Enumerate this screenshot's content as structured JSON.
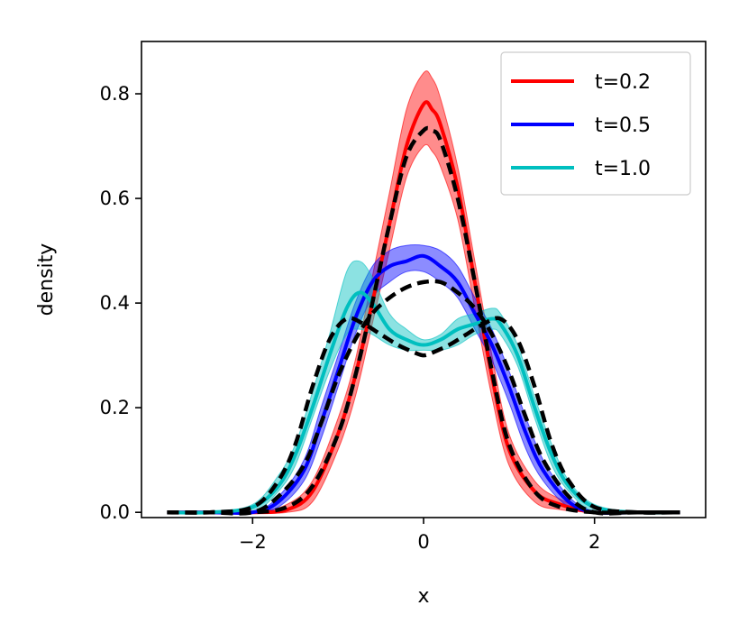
{
  "chart_data": {
    "type": "line",
    "title": "",
    "xlabel": "x",
    "ylabel": "density",
    "xlim": [
      -3.3,
      3.3
    ],
    "ylim": [
      -0.01,
      0.9
    ],
    "xticks": [
      -2,
      0,
      2
    ],
    "xtick_labels": [
      "−2",
      "0",
      "2"
    ],
    "yticks": [
      0.0,
      0.2,
      0.4,
      0.6,
      0.8
    ],
    "ytick_labels": [
      "0.0",
      "0.2",
      "0.4",
      "0.6",
      "0.8"
    ],
    "grid": false,
    "legend": {
      "placement": "top-right",
      "entries": [
        "t=0.2",
        "t=0.5",
        "t=1.0"
      ]
    },
    "series": [
      {
        "name": "t=0.2",
        "color": "#ff0000",
        "x": [
          -3.0,
          -2.5,
          -2.0,
          -1.6,
          -1.3,
          -1.0,
          -0.8,
          -0.6,
          -0.4,
          -0.2,
          0.0,
          0.1,
          0.2,
          0.4,
          0.6,
          0.8,
          1.0,
          1.3,
          1.6,
          2.0,
          2.5,
          3.0
        ],
        "mean": [
          0.0,
          0.0,
          0.0,
          0.005,
          0.04,
          0.15,
          0.26,
          0.4,
          0.55,
          0.7,
          0.78,
          0.77,
          0.74,
          0.62,
          0.44,
          0.26,
          0.12,
          0.04,
          0.015,
          0.0,
          0.0,
          0.0
        ],
        "lower": [
          0.0,
          0.0,
          0.0,
          0.0,
          0.02,
          0.12,
          0.22,
          0.36,
          0.5,
          0.64,
          0.7,
          0.69,
          0.66,
          0.56,
          0.39,
          0.22,
          0.09,
          0.02,
          0.005,
          0.0,
          0.0,
          0.0
        ],
        "upper": [
          0.0,
          0.0,
          0.0,
          0.015,
          0.06,
          0.18,
          0.29,
          0.45,
          0.61,
          0.77,
          0.84,
          0.83,
          0.79,
          0.66,
          0.48,
          0.3,
          0.15,
          0.06,
          0.025,
          0.0,
          0.0,
          0.0
        ]
      },
      {
        "name": "t=0.5",
        "color": "#0000ff",
        "x": [
          -3.0,
          -2.5,
          -2.0,
          -1.7,
          -1.4,
          -1.2,
          -1.0,
          -0.8,
          -0.6,
          -0.4,
          -0.2,
          0.0,
          0.2,
          0.4,
          0.6,
          0.8,
          1.0,
          1.2,
          1.4,
          1.7,
          2.0,
          2.5,
          3.0
        ],
        "mean": [
          0.0,
          0.0,
          0.0,
          0.02,
          0.08,
          0.17,
          0.27,
          0.37,
          0.44,
          0.47,
          0.48,
          0.49,
          0.47,
          0.44,
          0.38,
          0.32,
          0.24,
          0.15,
          0.08,
          0.02,
          0.0,
          0.0,
          0.0
        ],
        "lower": [
          0.0,
          0.0,
          0.0,
          0.01,
          0.06,
          0.14,
          0.24,
          0.34,
          0.41,
          0.44,
          0.46,
          0.46,
          0.44,
          0.41,
          0.35,
          0.29,
          0.21,
          0.12,
          0.06,
          0.01,
          0.0,
          0.0,
          0.0
        ],
        "upper": [
          0.0,
          0.0,
          0.0,
          0.03,
          0.1,
          0.2,
          0.3,
          0.4,
          0.47,
          0.5,
          0.51,
          0.51,
          0.5,
          0.47,
          0.41,
          0.35,
          0.27,
          0.18,
          0.1,
          0.03,
          0.0,
          0.0,
          0.0
        ]
      },
      {
        "name": "t=1.0",
        "color": "#00bfbf",
        "x": [
          -3.0,
          -2.5,
          -2.0,
          -1.7,
          -1.5,
          -1.3,
          -1.1,
          -0.9,
          -0.75,
          -0.6,
          -0.4,
          -0.2,
          0.0,
          0.2,
          0.4,
          0.6,
          0.8,
          0.9,
          1.1,
          1.3,
          1.5,
          1.7,
          2.0,
          2.5,
          3.0
        ],
        "mean": [
          0.0,
          0.0,
          0.01,
          0.05,
          0.11,
          0.2,
          0.3,
          0.39,
          0.42,
          0.4,
          0.35,
          0.33,
          0.32,
          0.33,
          0.35,
          0.36,
          0.37,
          0.36,
          0.3,
          0.2,
          0.11,
          0.05,
          0.01,
          0.0,
          0.0
        ],
        "lower": [
          0.0,
          0.0,
          0.0,
          0.04,
          0.09,
          0.18,
          0.27,
          0.34,
          0.35,
          0.34,
          0.32,
          0.31,
          0.31,
          0.31,
          0.32,
          0.34,
          0.35,
          0.34,
          0.28,
          0.18,
          0.09,
          0.04,
          0.0,
          0.0,
          0.0
        ],
        "upper": [
          0.0,
          0.0,
          0.015,
          0.07,
          0.13,
          0.23,
          0.34,
          0.46,
          0.48,
          0.45,
          0.38,
          0.35,
          0.33,
          0.34,
          0.37,
          0.38,
          0.39,
          0.38,
          0.32,
          0.22,
          0.13,
          0.06,
          0.015,
          0.0,
          0.0
        ]
      }
    ],
    "reference_curves": {
      "color": "#000000",
      "style": "dashed",
      "curves": [
        {
          "x": [
            -3.0,
            -2.5,
            -2.0,
            -1.6,
            -1.3,
            -1.0,
            -0.8,
            -0.6,
            -0.4,
            -0.2,
            0.0,
            0.1,
            0.2,
            0.4,
            0.6,
            0.8,
            1.0,
            1.3,
            1.6,
            2.0,
            2.5,
            3.0
          ],
          "y": [
            0.0,
            0.0,
            0.0,
            0.01,
            0.05,
            0.15,
            0.26,
            0.4,
            0.55,
            0.68,
            0.73,
            0.73,
            0.71,
            0.6,
            0.44,
            0.27,
            0.13,
            0.04,
            0.01,
            0.0,
            0.0,
            0.0
          ]
        },
        {
          "x": [
            -3.0,
            -2.5,
            -2.0,
            -1.7,
            -1.4,
            -1.2,
            -1.0,
            -0.8,
            -0.6,
            -0.4,
            -0.2,
            0.0,
            0.2,
            0.4,
            0.6,
            0.8,
            1.0,
            1.2,
            1.4,
            1.7,
            2.0,
            2.5,
            3.0
          ],
          "y": [
            0.0,
            0.0,
            0.0,
            0.03,
            0.09,
            0.17,
            0.26,
            0.33,
            0.38,
            0.41,
            0.43,
            0.44,
            0.44,
            0.42,
            0.39,
            0.34,
            0.27,
            0.18,
            0.1,
            0.03,
            0.0,
            0.0,
            0.0
          ]
        },
        {
          "x": [
            -3.0,
            -2.5,
            -2.0,
            -1.7,
            -1.5,
            -1.3,
            -1.1,
            -0.9,
            -0.7,
            -0.5,
            -0.3,
            -0.1,
            0.0,
            0.1,
            0.3,
            0.5,
            0.7,
            0.9,
            1.1,
            1.3,
            1.5,
            1.7,
            2.0,
            2.5,
            3.0
          ],
          "y": [
            0.0,
            0.0,
            0.01,
            0.06,
            0.13,
            0.24,
            0.33,
            0.37,
            0.36,
            0.34,
            0.32,
            0.305,
            0.3,
            0.305,
            0.32,
            0.34,
            0.36,
            0.37,
            0.33,
            0.24,
            0.13,
            0.06,
            0.01,
            0.0,
            0.0
          ]
        }
      ]
    }
  }
}
